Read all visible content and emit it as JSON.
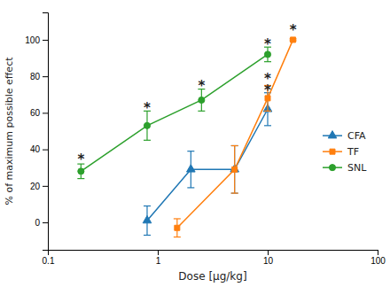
{
  "chart_data": {
    "type": "line",
    "xlabel": "Dose [μg/kg]",
    "ylabel": "% of maximum possible effect",
    "log": "x",
    "xlim": [
      0.1,
      100
    ],
    "xticks": [
      0.1,
      1,
      10,
      100
    ],
    "ylim": [
      -15,
      115
    ],
    "yticks": [
      0,
      20,
      40,
      60,
      80,
      100
    ],
    "grid": false,
    "legend": "right",
    "series": [
      {
        "name": "CFA",
        "marker": "triangle",
        "x": [
          0.8,
          2.0,
          5.0,
          10.0
        ],
        "values": [
          1.0,
          29.0,
          29.0,
          62.0
        ],
        "errors": [
          8.0,
          10.0,
          13.0,
          9.0
        ]
      },
      {
        "name": "TF",
        "marker": "square",
        "x": [
          1.5,
          5.0,
          10.0,
          17.0
        ],
        "values": [
          -3.0,
          29.0,
          68.0,
          100.0
        ],
        "errors": [
          5.0,
          13.0,
          7.0,
          0.5
        ]
      },
      {
        "name": "SNL",
        "marker": "circle",
        "x": [
          0.2,
          0.8,
          2.5,
          10.0
        ],
        "values": [
          28.0,
          53.0,
          67.0,
          92.0
        ],
        "errors": [
          4.0,
          8.0,
          6.0,
          4.0
        ]
      }
    ],
    "annotations": [
      {
        "x": 0.2,
        "y": 35,
        "text": "*"
      },
      {
        "x": 0.8,
        "y": 63,
        "text": "*"
      },
      {
        "x": 2.5,
        "y": 75,
        "text": "*"
      },
      {
        "x": 10.0,
        "y": 79,
        "text": "*"
      },
      {
        "x": 10.0,
        "y": 73,
        "text": "*"
      },
      {
        "x": 10.0,
        "y": 98,
        "text": "*"
      },
      {
        "x": 17.0,
        "y": 106,
        "text": "*"
      }
    ]
  }
}
